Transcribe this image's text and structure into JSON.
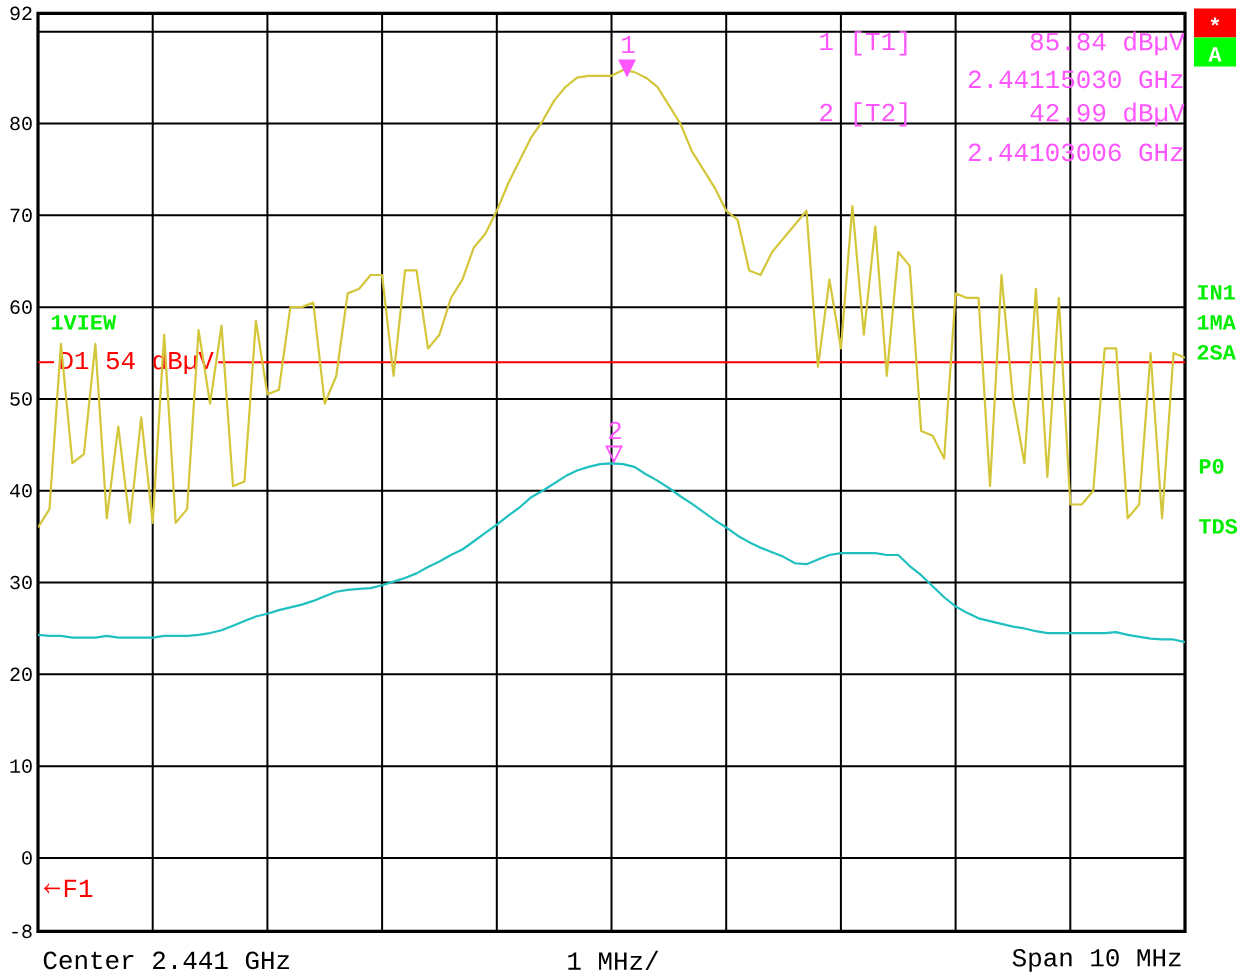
{
  "chart_data": {
    "type": "line",
    "categories": [
      null,
      null,
      null,
      null,
      null,
      null,
      null,
      null,
      null,
      null,
      null,
      null,
      null,
      null,
      null,
      null,
      null,
      null,
      null,
      null,
      null,
      null,
      null,
      null,
      null,
      null,
      null,
      null,
      null,
      null,
      null,
      null,
      null,
      null,
      null,
      null,
      null,
      null,
      null,
      null,
      null,
      null,
      null,
      null,
      null,
      null,
      null,
      null,
      null,
      null,
      null,
      null,
      null,
      null,
      null,
      null,
      null,
      null,
      null,
      null,
      null,
      null,
      null,
      null,
      null,
      null,
      null,
      null,
      null,
      null,
      null,
      null,
      null,
      null,
      null,
      null,
      null,
      null,
      null,
      null,
      null,
      null,
      null,
      null,
      null,
      null,
      null,
      null,
      null,
      null,
      null,
      null,
      null,
      null,
      null,
      null,
      null,
      null,
      null,
      null,
      null
    ],
    "ylim": [
      -8,
      92
    ],
    "yticks": [
      92,
      {
        "value": 90,
        "label": null
      },
      80,
      70,
      60,
      50,
      40,
      30,
      20,
      10,
      0,
      -8
    ],
    "tick_labels": "y",
    "grid": true,
    "marker": "none",
    "line_style": "solid",
    "series": [
      {
        "color": "#d4c63a",
        "values": [
          36,
          38,
          56,
          43,
          44,
          56,
          37,
          47,
          36.5,
          48,
          36.5,
          57,
          36.5,
          38,
          57.5,
          49.5,
          58,
          40.5,
          41,
          58.5,
          50.5,
          51,
          60,
          60,
          60.5,
          49.5,
          52.5,
          61.5,
          62,
          63.5,
          63.5,
          52.5,
          64,
          64,
          55.5,
          57,
          61,
          63,
          66.5,
          68,
          70.5,
          73.5,
          76,
          78.5,
          80.3,
          82.5,
          84,
          85,
          85.2,
          85.2,
          85.2,
          85.84,
          85.6,
          85,
          84,
          82,
          80,
          77,
          75,
          73,
          70.5,
          69.5,
          64,
          63.5,
          66,
          67.5,
          69,
          70.5,
          53.5,
          63,
          55.5,
          71,
          57,
          68.8,
          52.5,
          66,
          64.5,
          46.5,
          46,
          43.5,
          61.5,
          61,
          61,
          40.5,
          63.5,
          50,
          43,
          62,
          41.5,
          61,
          38.5,
          38.5,
          40,
          55.5,
          55.5,
          37,
          38.5,
          55,
          37,
          55,
          54.5
        ]
      },
      {
        "color": "#20c0c0",
        "values": [
          24.3,
          24.2,
          24.2,
          24,
          24,
          24,
          24.2,
          24,
          24,
          24,
          24,
          24.2,
          24.2,
          24.2,
          24.3,
          24.5,
          24.8,
          25.3,
          25.8,
          26.3,
          26.6,
          27,
          27.3,
          27.6,
          28,
          28.5,
          29,
          29.2,
          29.3,
          29.4,
          29.7,
          30.1,
          30.5,
          31,
          31.7,
          32.3,
          33,
          33.6,
          34.5,
          35.4,
          36.3,
          37.3,
          38.2,
          39.3,
          40,
          40.8,
          41.6,
          42.2,
          42.6,
          42.9,
          42.99,
          42.9,
          42.6,
          41.8,
          41.1,
          40.3,
          39.4,
          38.6,
          37.7,
          36.8,
          36,
          35.1,
          34.4,
          33.8,
          33.3,
          32.8,
          32.1,
          32,
          32.5,
          33,
          33.2,
          33.2,
          33.2,
          33.2,
          33,
          33,
          31.8,
          30.8,
          29.6,
          28.4,
          27.4,
          26.7,
          26.1,
          25.8,
          25.5,
          25.2,
          25,
          24.7,
          24.5,
          24.5,
          24.5,
          24.5,
          24.5,
          24.5,
          24.6,
          24.3,
          24.1,
          23.9,
          23.8,
          23.8,
          23.5
        ]
      }
    ],
    "ref_lines": [
      {
        "axis": "y",
        "value": 54,
        "label": "D1 54 dBµV",
        "color": "#ff0000"
      }
    ],
    "annotations": [
      "1",
      "2",
      "1 [T1]",
      "85.84 dBµV",
      "2.44115030 GHz",
      "2 [T2]",
      "42.99 dBµV",
      "2.44103006 GHz",
      "*",
      "A",
      "IN1",
      "1MA",
      "2SA",
      "P0",
      "TDS",
      "1VIEW",
      "F1",
      "Center 2.441 GHz",
      "1 MHz/",
      "Span 10 MHz"
    ]
  }
}
